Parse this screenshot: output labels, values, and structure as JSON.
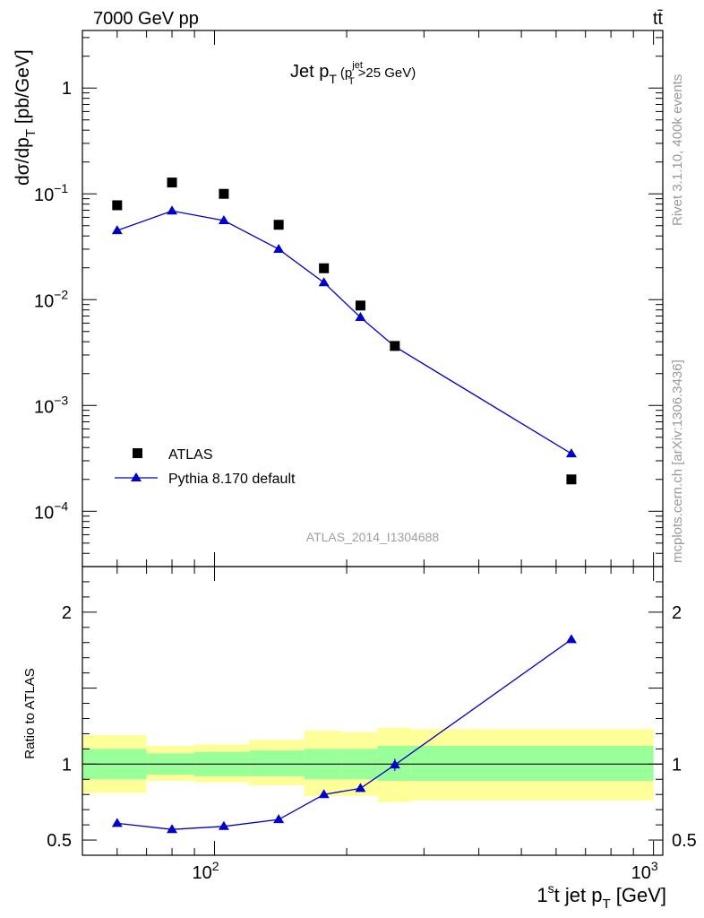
{
  "header": {
    "energy_label": "7000 GeV pp",
    "process_label": "tt̄"
  },
  "side_labels": {
    "rivet": "Rivet 3.1.10,  400k events",
    "mcplots": "mcplots.cern.ch [arXiv:1306.3436]"
  },
  "colors": {
    "mc": "#0000cc",
    "data": "#000000",
    "band_stat": "#99ff99",
    "band_total": "#ffff99"
  },
  "chart_data": [
    {
      "type": "scatter",
      "panel": "main",
      "title": "Jet p_T (p_T^jet > 25 GeV)",
      "title_parts": {
        "main": "Jet p",
        "sub": "T",
        "paren_open": "(p",
        "paren_sup": "jet",
        "paren_sub": "T",
        "paren_rest": ">25 GeV)"
      },
      "ylabel": "dσ/dp_T [pb/GeV]",
      "ylabel_parts": {
        "main": "dσ/dp",
        "sub": "T",
        "unit": " [pb/GeV]"
      },
      "xscale": "log",
      "yscale": "log",
      "xlim": [
        50,
        1050
      ],
      "ylim": [
        3e-05,
        3.5
      ],
      "y_tick_labels": [
        {
          "value": 0.0001,
          "base": "10",
          "exp": "−4"
        },
        {
          "value": 0.001,
          "base": "10",
          "exp": "−3"
        },
        {
          "value": 0.01,
          "base": "10",
          "exp": "−2"
        },
        {
          "value": 0.1,
          "base": "10",
          "exp": "−1"
        },
        {
          "value": 1,
          "base": "1",
          "exp": ""
        }
      ],
      "watermark": "ATLAS_2014_I1304688",
      "legend": {
        "placement": "bottom-left",
        "entries": [
          "ATLAS",
          "Pythia 8.170 default"
        ]
      },
      "series": [
        {
          "name": "ATLAS",
          "marker": "square",
          "x": [
            60,
            80,
            105,
            140,
            177.5,
            215,
            257.5,
            650
          ],
          "y": [
            0.078,
            0.128,
            0.1,
            0.051,
            0.0198,
            0.0088,
            0.00365,
            0.0002
          ]
        },
        {
          "name": "Pythia 8.170 default",
          "marker": "triangle",
          "x": [
            60,
            80,
            105,
            140,
            177.5,
            215,
            257.5,
            650
          ],
          "y": [
            0.045,
            0.069,
            0.056,
            0.03,
            0.0145,
            0.0068,
            0.0036,
            0.00035
          ]
        }
      ]
    },
    {
      "type": "line",
      "panel": "ratio",
      "ylabel": "Ratio to ATLAS",
      "xlabel": "1st jet p_T [GeV]",
      "xlabel_parts": {
        "one": "1",
        "sup": "s",
        "rest": "t jet p",
        "sub": "T",
        "unit": " [GeV]"
      },
      "xscale": "log",
      "xlim": [
        50,
        1050
      ],
      "ylim": [
        0.4,
        2.3
      ],
      "y_tick_labels": [
        "0.5",
        "1",
        "2"
      ],
      "y_tick_values": [
        0.5,
        1,
        2
      ],
      "x_tick_labels": [
        {
          "value": 100,
          "base": "10",
          "exp": "2"
        },
        {
          "value": 1000,
          "base": "10",
          "exp": "3"
        }
      ],
      "bins": [
        {
          "lo": 50,
          "hi": 70,
          "stat_lo": 0.9,
          "stat_hi": 1.1,
          "tot_lo": 0.81,
          "tot_hi": 1.19
        },
        {
          "lo": 70,
          "hi": 90,
          "stat_lo": 0.93,
          "stat_hi": 1.07,
          "tot_lo": 0.89,
          "tot_hi": 1.12
        },
        {
          "lo": 90,
          "hi": 120,
          "stat_lo": 0.92,
          "stat_hi": 1.08,
          "tot_lo": 0.88,
          "tot_hi": 1.13
        },
        {
          "lo": 120,
          "hi": 160,
          "stat_lo": 0.92,
          "stat_hi": 1.09,
          "tot_lo": 0.86,
          "tot_hi": 1.16
        },
        {
          "lo": 160,
          "hi": 195,
          "stat_lo": 0.9,
          "stat_hi": 1.1,
          "tot_lo": 0.79,
          "tot_hi": 1.22
        },
        {
          "lo": 195,
          "hi": 235,
          "stat_lo": 0.9,
          "stat_hi": 1.1,
          "tot_lo": 0.79,
          "tot_hi": 1.21
        },
        {
          "lo": 235,
          "hi": 280,
          "stat_lo": 0.89,
          "stat_hi": 1.12,
          "tot_lo": 0.75,
          "tot_hi": 1.24
        },
        {
          "lo": 280,
          "hi": 1000,
          "stat_lo": 0.89,
          "stat_hi": 1.12,
          "tot_lo": 0.76,
          "tot_hi": 1.23
        }
      ],
      "series": [
        {
          "name": "Pythia 8.170 default / ATLAS",
          "x": [
            60,
            80,
            105,
            140,
            177.5,
            215,
            257.5,
            650
          ],
          "y": [
            0.61,
            0.57,
            0.59,
            0.635,
            0.8,
            0.84,
            0.995,
            1.82
          ]
        }
      ]
    }
  ]
}
